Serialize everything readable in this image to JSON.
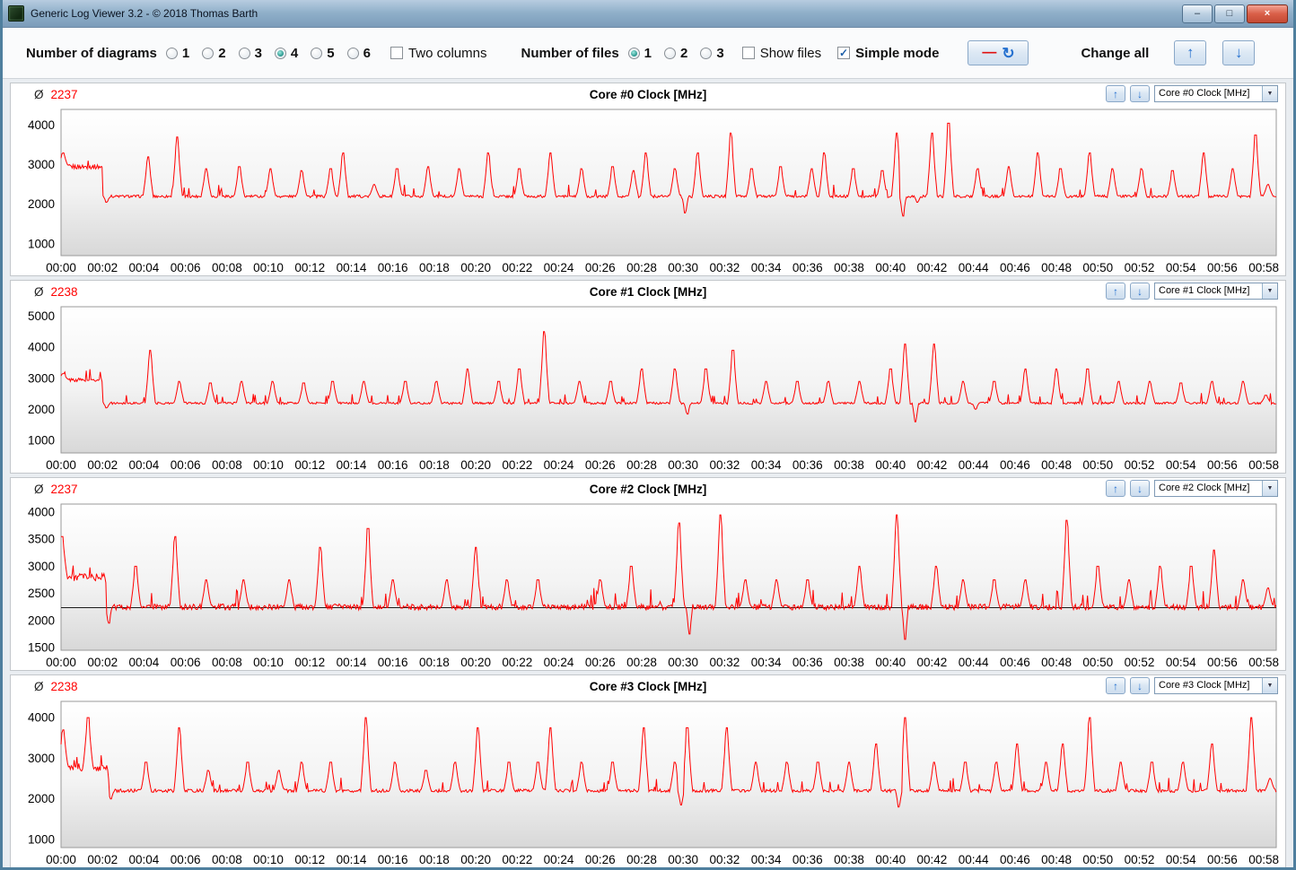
{
  "window": {
    "title": "Generic Log Viewer 3.2 - © 2018 Thomas Barth",
    "controls": {
      "minimize": "–",
      "maximize": "□",
      "close": "×"
    }
  },
  "icons": {
    "check": "✓",
    "minus": "—",
    "refresh": "↻",
    "up": "↑",
    "down": "↓",
    "dropdown": "▼"
  },
  "toolbar": {
    "diagrams_label": "Number of diagrams",
    "diagram_options": [
      "1",
      "2",
      "3",
      "4",
      "5",
      "6"
    ],
    "diagrams_selected": "4",
    "two_columns_label": "Two columns",
    "two_columns_checked": false,
    "files_label": "Number of files",
    "file_options": [
      "1",
      "2",
      "3"
    ],
    "files_selected": "1",
    "show_files_label": "Show files",
    "show_files_checked": false,
    "simple_mode_label": "Simple mode",
    "simple_mode_checked": true,
    "change_all_label": "Change all"
  },
  "panels": [
    {
      "avg_symbol": "Ø",
      "avg_value": "2237",
      "title": "Core #0 Clock [MHz]",
      "dropdown_value": "Core #0 Clock [MHz]"
    },
    {
      "avg_symbol": "Ø",
      "avg_value": "2238",
      "title": "Core #1 Clock [MHz]",
      "dropdown_value": "Core #1 Clock [MHz]"
    },
    {
      "avg_symbol": "Ø",
      "avg_value": "2237",
      "title": "Core #2 Clock [MHz]",
      "dropdown_value": "Core #2 Clock [MHz]"
    },
    {
      "avg_symbol": "Ø",
      "avg_value": "2238",
      "title": "Core #3 Clock [MHz]",
      "dropdown_value": "Core #3 Clock [MHz]"
    }
  ],
  "chart_data": {
    "type": "line",
    "x_unit": "mm:ss",
    "x_ticks": [
      "00:00",
      "00:02",
      "00:04",
      "00:06",
      "00:08",
      "00:10",
      "00:12",
      "00:14",
      "00:16",
      "00:18",
      "00:20",
      "00:22",
      "00:24",
      "00:26",
      "00:28",
      "00:30",
      "00:32",
      "00:34",
      "00:36",
      "00:38",
      "00:40",
      "00:42",
      "00:44",
      "00:46",
      "00:48",
      "00:50",
      "00:52",
      "00:54",
      "00:56",
      "00:58"
    ],
    "charts": [
      {
        "title": "Core #0 Clock [MHz]",
        "color": "#ff0000",
        "ylim": [
          700,
          4400
        ],
        "y_ticks": [
          1000,
          2000,
          3000,
          4000
        ],
        "average": 2237,
        "baseline": 2200,
        "noise": 35,
        "warmup": {
          "end": 2.0,
          "value": 2950
        },
        "warmup_noise": 60,
        "spikes": [
          [
            0.1,
            3300
          ],
          [
            4.2,
            3200
          ],
          [
            5.6,
            3700
          ],
          [
            7.0,
            2900
          ],
          [
            8.6,
            2950
          ],
          [
            10.1,
            2900
          ],
          [
            11.6,
            2850
          ],
          [
            13.0,
            2900
          ],
          [
            13.6,
            3300
          ],
          [
            15.1,
            2500
          ],
          [
            16.2,
            2900
          ],
          [
            17.7,
            2950
          ],
          [
            19.2,
            2900
          ],
          [
            20.6,
            3300
          ],
          [
            22.1,
            2900
          ],
          [
            23.6,
            3300
          ],
          [
            25.1,
            2900
          ],
          [
            26.6,
            2950
          ],
          [
            27.6,
            2850
          ],
          [
            28.2,
            3300
          ],
          [
            29.6,
            2900
          ],
          [
            30.7,
            3300
          ],
          [
            32.3,
            3800
          ],
          [
            33.3,
            2900
          ],
          [
            34.7,
            2950
          ],
          [
            36.2,
            2900
          ],
          [
            36.8,
            3300
          ],
          [
            38.2,
            2900
          ],
          [
            39.6,
            2850
          ],
          [
            40.3,
            3800
          ],
          [
            42.0,
            3800
          ],
          [
            42.8,
            4050
          ],
          [
            44.2,
            2900
          ],
          [
            45.7,
            2950
          ],
          [
            47.1,
            3300
          ],
          [
            48.2,
            2900
          ],
          [
            49.6,
            3300
          ],
          [
            50.7,
            2900
          ],
          [
            52.1,
            2900
          ],
          [
            53.6,
            2850
          ],
          [
            55.1,
            3300
          ],
          [
            56.5,
            2900
          ],
          [
            57.6,
            3750
          ],
          [
            58.2,
            2500
          ]
        ],
        "dips": [
          [
            2.2,
            2050
          ],
          [
            30.1,
            1780
          ],
          [
            40.6,
            1700
          ],
          [
            41.3,
            2050
          ]
        ]
      },
      {
        "title": "Core #1 Clock [MHz]",
        "color": "#ff0000",
        "ylim": [
          600,
          5300
        ],
        "y_ticks": [
          1000,
          2000,
          3000,
          4000,
          5000
        ],
        "average": 2238,
        "baseline": 2200,
        "noise": 35,
        "warmup": {
          "end": 2.0,
          "value": 2950
        },
        "warmup_noise": 60,
        "spikes": [
          [
            0.1,
            3150
          ],
          [
            4.3,
            3900
          ],
          [
            5.7,
            2900
          ],
          [
            7.2,
            2850
          ],
          [
            8.7,
            2900
          ],
          [
            10.2,
            2900
          ],
          [
            11.7,
            2850
          ],
          [
            13.1,
            2900
          ],
          [
            14.6,
            2900
          ],
          [
            16.6,
            2900
          ],
          [
            18.1,
            2900
          ],
          [
            19.6,
            3300
          ],
          [
            21.1,
            2900
          ],
          [
            22.1,
            3300
          ],
          [
            23.3,
            4500
          ],
          [
            25.0,
            2900
          ],
          [
            26.5,
            2900
          ],
          [
            28.0,
            3300
          ],
          [
            29.6,
            3300
          ],
          [
            31.1,
            3300
          ],
          [
            32.4,
            3900
          ],
          [
            34.0,
            2900
          ],
          [
            35.5,
            2900
          ],
          [
            37.0,
            2900
          ],
          [
            38.5,
            2900
          ],
          [
            40.0,
            3300
          ],
          [
            40.7,
            4100
          ],
          [
            42.1,
            4100
          ],
          [
            43.5,
            2900
          ],
          [
            45.0,
            2900
          ],
          [
            46.5,
            3300
          ],
          [
            48.0,
            3300
          ],
          [
            49.5,
            3300
          ],
          [
            51.0,
            2900
          ],
          [
            52.5,
            2900
          ],
          [
            54.0,
            2850
          ],
          [
            55.5,
            2900
          ],
          [
            57.0,
            2900
          ],
          [
            58.1,
            2450
          ]
        ],
        "dips": [
          [
            2.2,
            2050
          ],
          [
            30.2,
            1850
          ],
          [
            41.2,
            1600
          ],
          [
            44.1,
            2000
          ]
        ]
      },
      {
        "title": "Core #2 Clock [MHz]",
        "color": "#ff0000",
        "ylim": [
          1450,
          4150
        ],
        "y_ticks": [
          1500,
          2000,
          2500,
          3000,
          3500,
          4000
        ],
        "average": 2237,
        "avg_line": 2237,
        "baseline": 2250,
        "noise": 55,
        "warmup": {
          "end": 2.2,
          "value": 2800
        },
        "warmup_noise": 70,
        "spikes": [
          [
            0.05,
            3550
          ],
          [
            3.6,
            3000
          ],
          [
            5.5,
            3550
          ],
          [
            7.0,
            2750
          ],
          [
            8.8,
            2750
          ],
          [
            11.0,
            2750
          ],
          [
            12.5,
            3350
          ],
          [
            14.8,
            3700
          ],
          [
            16.0,
            2750
          ],
          [
            18.6,
            2750
          ],
          [
            20.0,
            3350
          ],
          [
            21.5,
            2750
          ],
          [
            23.0,
            2750
          ],
          [
            26.0,
            2750
          ],
          [
            27.5,
            3000
          ],
          [
            29.8,
            3800
          ],
          [
            31.8,
            3950
          ],
          [
            33.0,
            2750
          ],
          [
            34.5,
            2750
          ],
          [
            36.0,
            2750
          ],
          [
            38.5,
            3000
          ],
          [
            40.3,
            3950
          ],
          [
            42.2,
            3000
          ],
          [
            43.5,
            2750
          ],
          [
            45.0,
            2750
          ],
          [
            46.5,
            2750
          ],
          [
            48.5,
            3850
          ],
          [
            50.0,
            3000
          ],
          [
            51.5,
            2750
          ],
          [
            53.0,
            3000
          ],
          [
            54.5,
            3000
          ],
          [
            55.6,
            3300
          ],
          [
            57.0,
            2750
          ],
          [
            58.2,
            2600
          ]
        ],
        "dips": [
          [
            2.3,
            1950
          ],
          [
            30.3,
            1750
          ],
          [
            40.7,
            1650
          ]
        ]
      },
      {
        "title": "Core #3 Clock [MHz]",
        "color": "#ff0000",
        "ylim": [
          800,
          4400
        ],
        "y_ticks": [
          1000,
          2000,
          3000,
          4000
        ],
        "average": 2238,
        "baseline": 2200,
        "noise": 40,
        "warmup": {
          "end": 2.3,
          "value": 2750
        },
        "warmup_noise": 80,
        "spikes": [
          [
            0.1,
            3700
          ],
          [
            1.3,
            4000
          ],
          [
            4.1,
            2900
          ],
          [
            5.7,
            3750
          ],
          [
            7.1,
            2700
          ],
          [
            9.0,
            2900
          ],
          [
            10.5,
            2700
          ],
          [
            11.6,
            2900
          ],
          [
            13.0,
            2900
          ],
          [
            14.7,
            4000
          ],
          [
            16.1,
            2900
          ],
          [
            17.6,
            2700
          ],
          [
            19.0,
            2900
          ],
          [
            20.1,
            3750
          ],
          [
            21.6,
            2900
          ],
          [
            23.0,
            2900
          ],
          [
            23.6,
            3750
          ],
          [
            25.1,
            2900
          ],
          [
            26.6,
            2900
          ],
          [
            28.1,
            3750
          ],
          [
            29.6,
            2900
          ],
          [
            30.2,
            3750
          ],
          [
            32.1,
            3750
          ],
          [
            33.5,
            2900
          ],
          [
            35.0,
            2900
          ],
          [
            36.5,
            2900
          ],
          [
            38.0,
            2900
          ],
          [
            39.3,
            3350
          ],
          [
            40.7,
            4000
          ],
          [
            42.1,
            2900
          ],
          [
            43.6,
            2900
          ],
          [
            45.1,
            2900
          ],
          [
            46.1,
            3350
          ],
          [
            47.5,
            2900
          ],
          [
            48.3,
            3350
          ],
          [
            49.6,
            4000
          ],
          [
            51.1,
            2900
          ],
          [
            52.6,
            2900
          ],
          [
            54.1,
            2900
          ],
          [
            55.5,
            3350
          ],
          [
            57.4,
            4000
          ],
          [
            58.3,
            2500
          ]
        ],
        "dips": [
          [
            2.4,
            2000
          ],
          [
            29.9,
            1850
          ],
          [
            40.4,
            1800
          ]
        ]
      }
    ]
  }
}
